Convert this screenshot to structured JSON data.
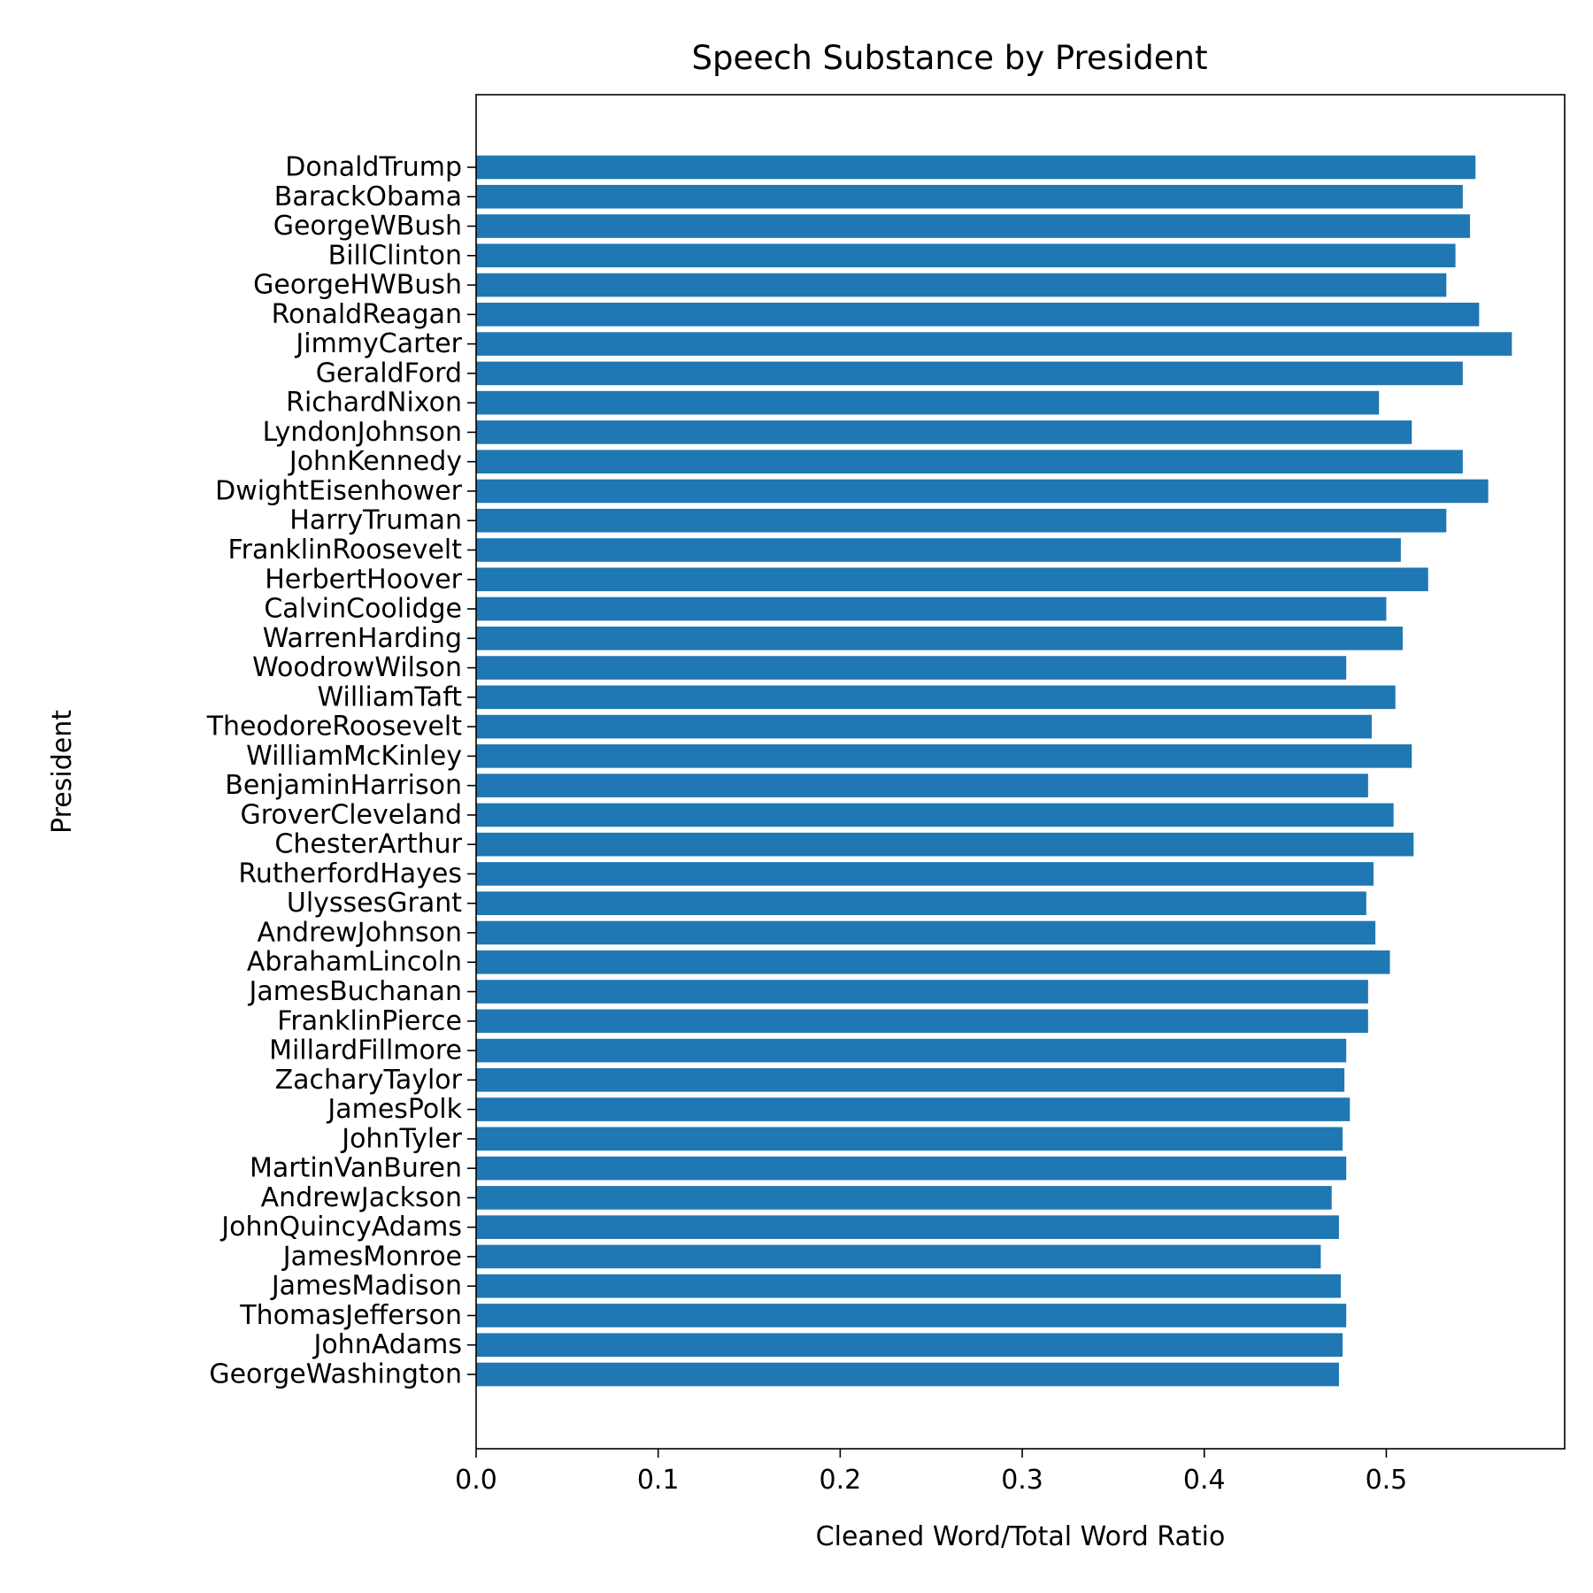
{
  "chart_data": {
    "type": "bar",
    "orientation": "horizontal",
    "title": "Speech Substance by President",
    "xlabel": "Cleaned Word/Total Word Ratio",
    "ylabel": "President",
    "xlim": [
      0.0,
      0.598
    ],
    "xticks": [
      "0.0",
      "0.1",
      "0.2",
      "0.3",
      "0.4",
      "0.5"
    ],
    "grid": false,
    "bar_color": "#1f77b4",
    "categories": [
      "DonaldTrump",
      "BarackObama",
      "GeorgeWBush",
      "BillClinton",
      "GeorgeHWBush",
      "RonaldReagan",
      "JimmyCarter",
      "GeraldFord",
      "RichardNixon",
      "LyndonJohnson",
      "JohnKennedy",
      "DwightEisenhower",
      "HarryTruman",
      "FranklinRoosevelt",
      "HerbertHoover",
      "CalvinCoolidge",
      "WarrenHarding",
      "WoodrowWilson",
      "WilliamTaft",
      "TheodoreRoosevelt",
      "WilliamMcKinley",
      "BenjaminHarrison",
      "GroverCleveland",
      "ChesterArthur",
      "RutherfordHayes",
      "UlyssesGrant",
      "AndrewJohnson",
      "AbrahamLincoln",
      "JamesBuchanan",
      "FranklinPierce",
      "MillardFillmore",
      "ZacharyTaylor",
      "JamesPolk",
      "JohnTyler",
      "MartinVanBuren",
      "AndrewJackson",
      "JohnQuincyAdams",
      "JamesMonroe",
      "JamesMadison",
      "ThomasJefferson",
      "JohnAdams",
      "GeorgeWashington"
    ],
    "values": [
      0.549,
      0.542,
      0.546,
      0.538,
      0.533,
      0.551,
      0.569,
      0.542,
      0.496,
      0.514,
      0.542,
      0.556,
      0.533,
      0.508,
      0.523,
      0.5,
      0.509,
      0.478,
      0.505,
      0.492,
      0.514,
      0.49,
      0.504,
      0.515,
      0.493,
      0.489,
      0.494,
      0.502,
      0.49,
      0.49,
      0.478,
      0.477,
      0.48,
      0.476,
      0.478,
      0.47,
      0.474,
      0.464,
      0.475,
      0.478,
      0.476,
      0.474
    ]
  }
}
